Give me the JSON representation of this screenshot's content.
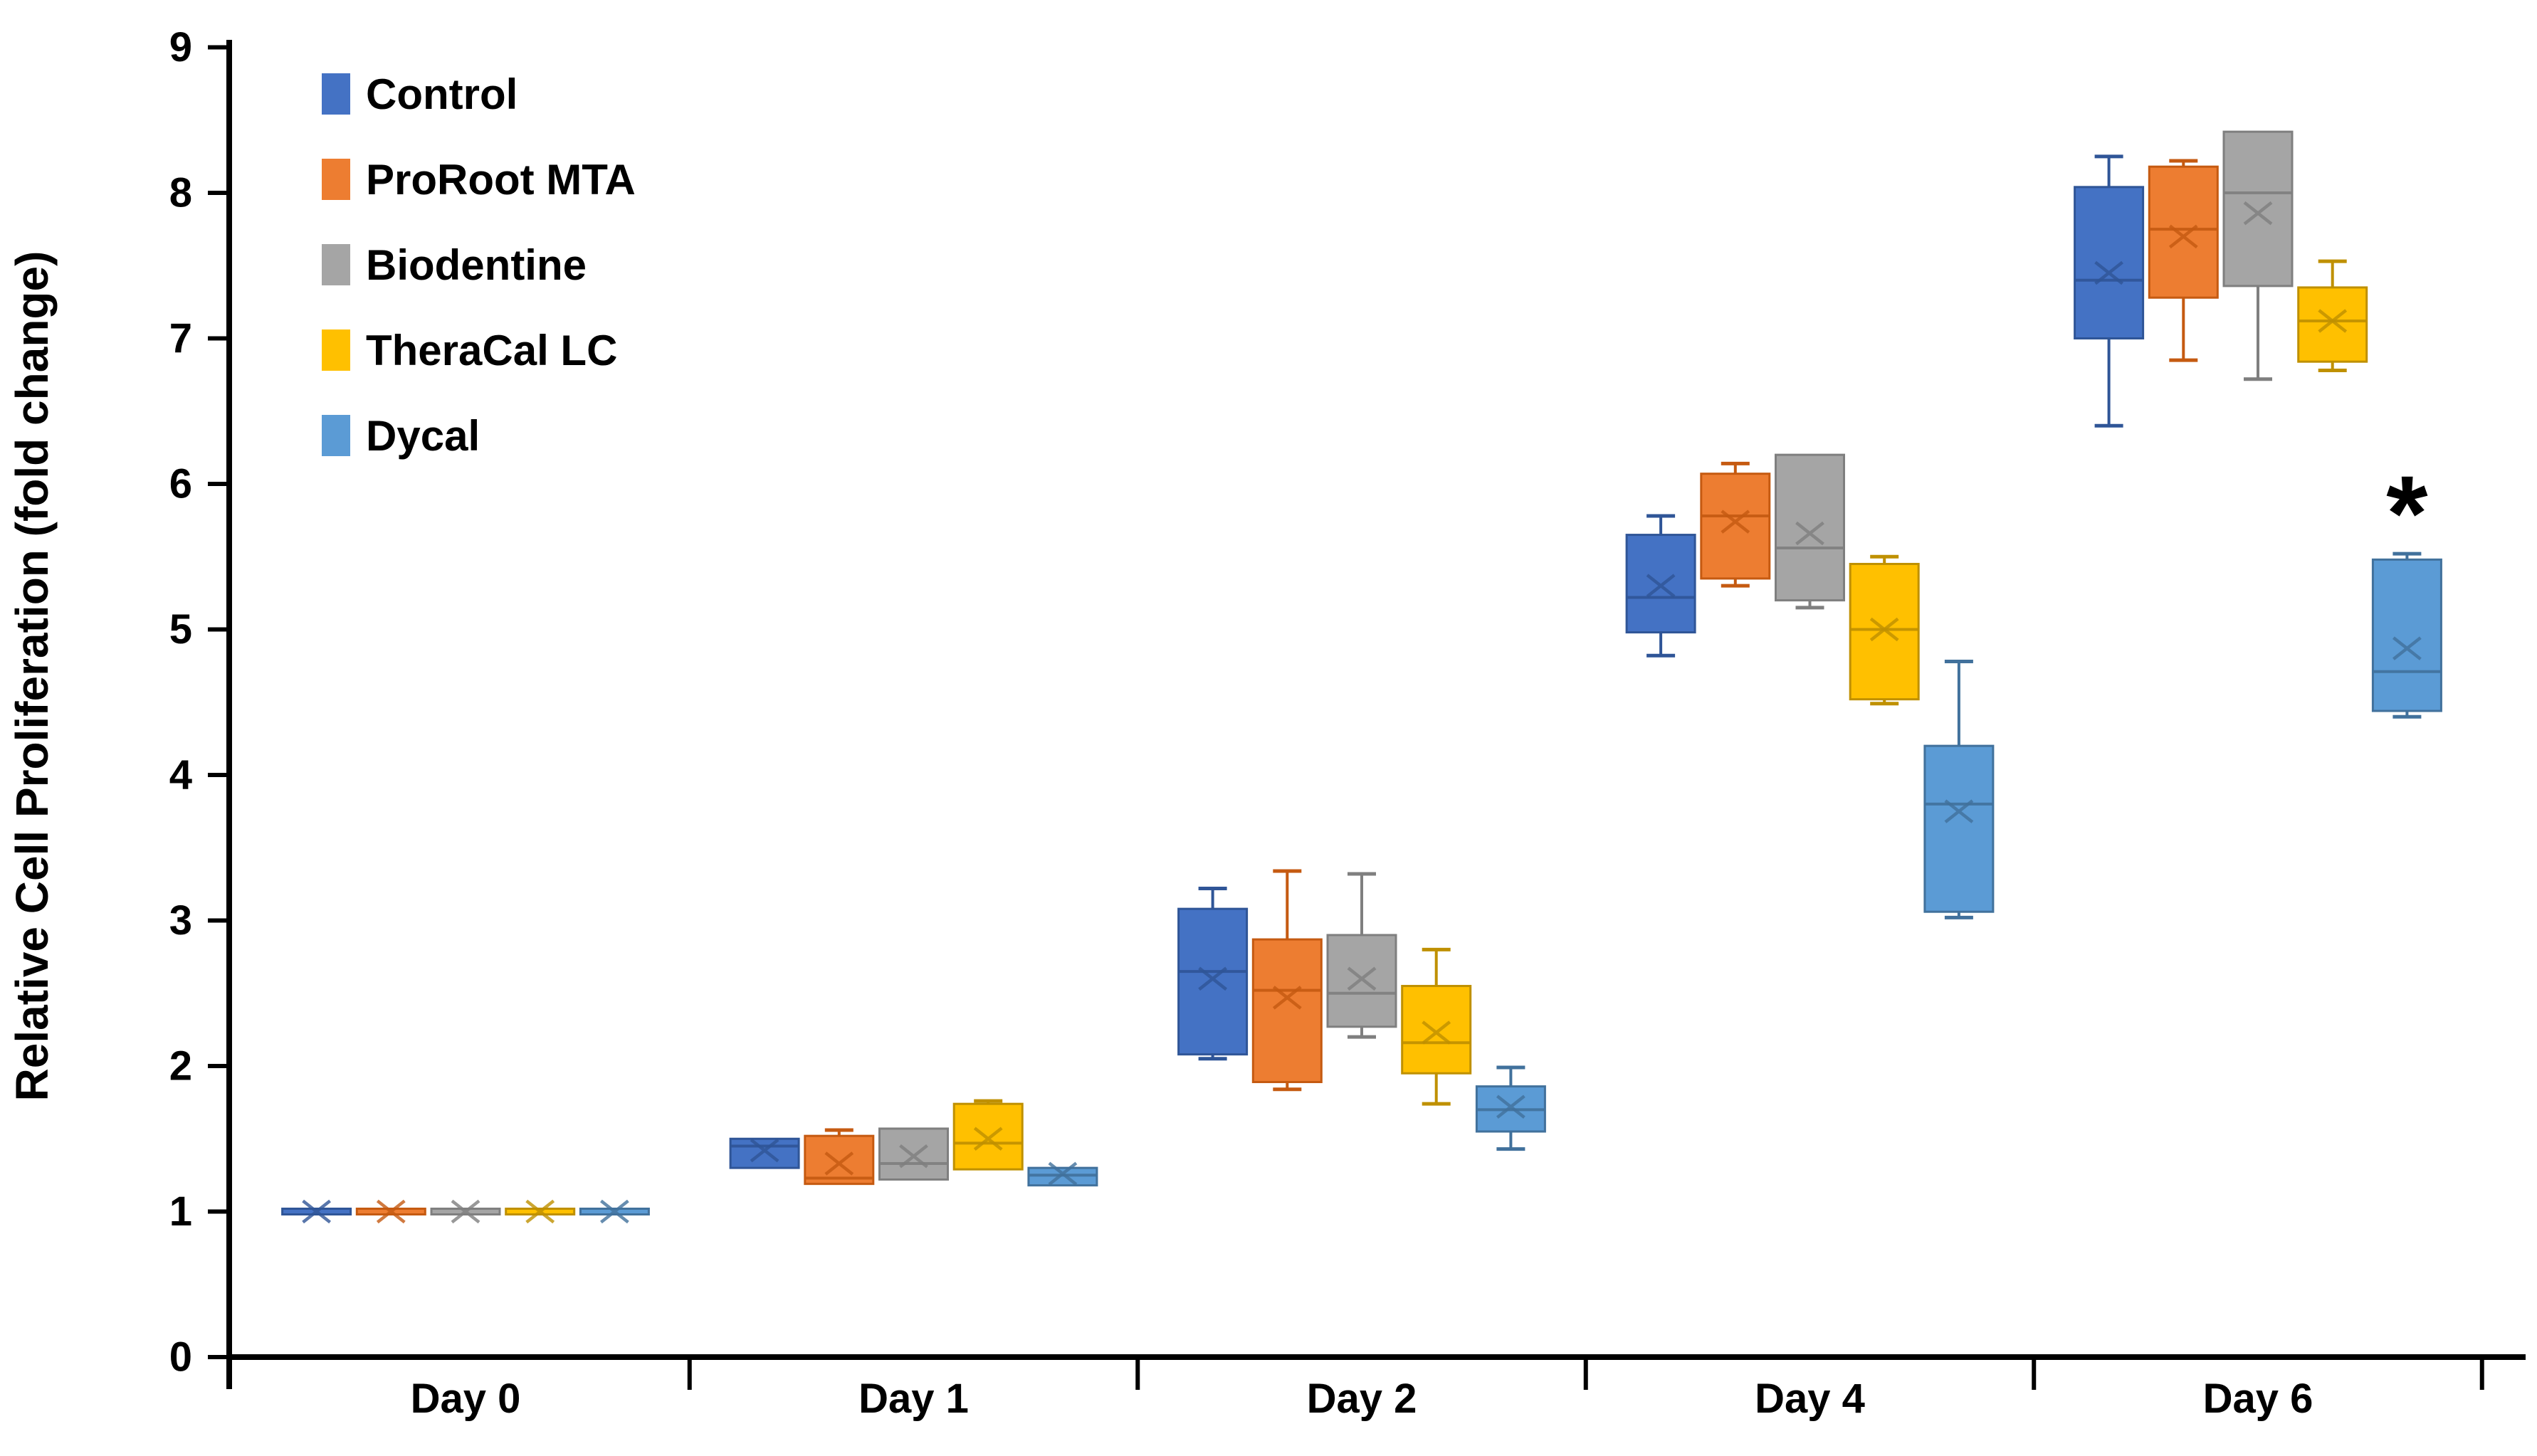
{
  "chart_data": {
    "type": "box",
    "title": "",
    "xlabel": "",
    "ylabel": "Relative Cell Proliferation (fold change)",
    "ylim": [
      0,
      9
    ],
    "y_ticks": [
      0,
      1,
      2,
      3,
      4,
      5,
      6,
      7,
      8,
      9
    ],
    "grid": false,
    "legend_position": "top-left",
    "categories": [
      "Day 0",
      "Day 1",
      "Day 2",
      "Day 4",
      "Day 6"
    ],
    "series": [
      {
        "name": "Control",
        "color": "#4472C4",
        "edge_color": "#2F5597",
        "boxes": [
          {
            "min": 1.0,
            "q1": 1.0,
            "median": 1.0,
            "q3": 1.0,
            "max": 1.0,
            "mean": 1.0
          },
          {
            "min": 1.3,
            "q1": 1.3,
            "median": 1.45,
            "q3": 1.5,
            "max": 1.5,
            "mean": 1.42
          },
          {
            "min": 2.05,
            "q1": 2.08,
            "median": 2.65,
            "q3": 3.08,
            "max": 3.22,
            "mean": 2.6
          },
          {
            "min": 4.82,
            "q1": 4.98,
            "median": 5.22,
            "q3": 5.65,
            "max": 5.78,
            "mean": 5.3
          },
          {
            "min": 6.4,
            "q1": 7.0,
            "median": 7.4,
            "q3": 8.04,
            "max": 8.25,
            "mean": 7.45
          }
        ]
      },
      {
        "name": "ProRoot MTA",
        "color": "#ED7D31",
        "edge_color": "#C55A11",
        "boxes": [
          {
            "min": 1.0,
            "q1": 1.0,
            "median": 1.0,
            "q3": 1.0,
            "max": 1.0,
            "mean": 1.0
          },
          {
            "min": 1.19,
            "q1": 1.19,
            "median": 1.23,
            "q3": 1.52,
            "max": 1.56,
            "mean": 1.33
          },
          {
            "min": 1.84,
            "q1": 1.89,
            "median": 2.52,
            "q3": 2.87,
            "max": 3.34,
            "mean": 2.47
          },
          {
            "min": 5.3,
            "q1": 5.35,
            "median": 5.78,
            "q3": 6.07,
            "max": 6.14,
            "mean": 5.74
          },
          {
            "min": 6.85,
            "q1": 7.28,
            "median": 7.75,
            "q3": 8.18,
            "max": 8.22,
            "mean": 7.7
          }
        ]
      },
      {
        "name": "Biodentine",
        "color": "#A5A5A5",
        "edge_color": "#7F7F7F",
        "boxes": [
          {
            "min": 1.0,
            "q1": 1.0,
            "median": 1.0,
            "q3": 1.0,
            "max": 1.0,
            "mean": 1.0
          },
          {
            "min": 1.22,
            "q1": 1.22,
            "median": 1.33,
            "q3": 1.57,
            "max": 1.57,
            "mean": 1.38
          },
          {
            "min": 2.2,
            "q1": 2.27,
            "median": 2.5,
            "q3": 2.9,
            "max": 3.32,
            "mean": 2.6
          },
          {
            "min": 5.15,
            "q1": 5.2,
            "median": 5.56,
            "q3": 6.2,
            "max": 6.2,
            "mean": 5.66
          },
          {
            "min": 6.72,
            "q1": 7.36,
            "median": 8.0,
            "q3": 8.42,
            "max": 8.42,
            "mean": 7.86
          }
        ]
      },
      {
        "name": "TheraCal LC",
        "color": "#FFC000",
        "edge_color": "#BF9000",
        "boxes": [
          {
            "min": 1.0,
            "q1": 1.0,
            "median": 1.0,
            "q3": 1.0,
            "max": 1.0,
            "mean": 1.0
          },
          {
            "min": 1.29,
            "q1": 1.29,
            "median": 1.47,
            "q3": 1.74,
            "max": 1.76,
            "mean": 1.5
          },
          {
            "min": 1.74,
            "q1": 1.95,
            "median": 2.16,
            "q3": 2.55,
            "max": 2.8,
            "mean": 2.23
          },
          {
            "min": 4.49,
            "q1": 4.52,
            "median": 5.0,
            "q3": 5.45,
            "max": 5.5,
            "mean": 5.0
          },
          {
            "min": 6.78,
            "q1": 6.84,
            "median": 7.12,
            "q3": 7.35,
            "max": 7.53,
            "mean": 7.12
          }
        ]
      },
      {
        "name": "Dycal",
        "color": "#5B9BD5",
        "edge_color": "#41719C",
        "boxes": [
          {
            "min": 1.0,
            "q1": 1.0,
            "median": 1.0,
            "q3": 1.0,
            "max": 1.0,
            "mean": 1.0
          },
          {
            "min": 1.18,
            "q1": 1.18,
            "median": 1.25,
            "q3": 1.3,
            "max": 1.3,
            "mean": 1.26
          },
          {
            "min": 1.43,
            "q1": 1.55,
            "median": 1.7,
            "q3": 1.86,
            "max": 1.99,
            "mean": 1.72
          },
          {
            "min": 3.02,
            "q1": 3.06,
            "median": 3.8,
            "q3": 4.2,
            "max": 4.78,
            "mean": 3.75
          },
          {
            "min": 4.4,
            "q1": 4.44,
            "median": 4.71,
            "q3": 5.48,
            "max": 5.52,
            "mean": 4.87
          }
        ]
      }
    ],
    "annotations": [
      {
        "text": "*",
        "category": "Day 6",
        "series": "Dycal",
        "y": 5.85,
        "color": "#000000"
      }
    ]
  }
}
